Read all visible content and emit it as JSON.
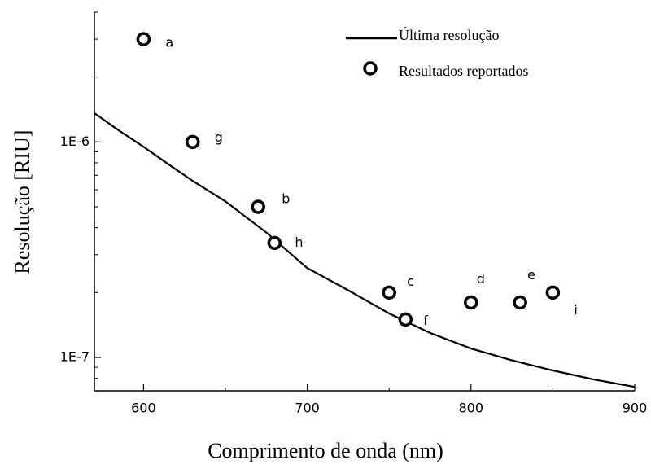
{
  "chart_data": {
    "type": "line",
    "xlabel": "Comprimento de onda (nm)",
    "ylabel": "Resolução [RIU]",
    "xlim": [
      570,
      900
    ],
    "xticks": [
      600,
      700,
      800,
      900
    ],
    "xminor": [
      650,
      750,
      850
    ],
    "ylim": [
      7e-08,
      4e-06
    ],
    "log_y": true,
    "yticks": [
      {
        "value": 1e-07,
        "label": "1E-7"
      },
      {
        "value": 1e-06,
        "label": "1E-6"
      }
    ],
    "yminor": [
      8e-08,
      9e-08,
      2e-07,
      3e-07,
      4e-07,
      5e-07,
      6e-07,
      7e-07,
      8e-07,
      9e-07,
      2e-06,
      3e-06,
      4e-06
    ],
    "legend": "top-right",
    "series": [
      {
        "name": "Última resolução",
        "type": "line",
        "color": "#000000",
        "x": [
          570,
          585,
          600,
          615,
          630,
          650,
          675,
          700,
          725,
          750,
          775,
          800,
          825,
          850,
          875,
          900
        ],
        "values": [
          1.36e-06,
          1.13e-06,
          9.5e-07,
          7.9e-07,
          6.6e-07,
          5.3e-07,
          3.8e-07,
          2.6e-07,
          2.05e-07,
          1.6e-07,
          1.3e-07,
          1.1e-07,
          9.7e-08,
          8.7e-08,
          7.9e-08,
          7.3e-08
        ]
      },
      {
        "name": "Resultados reportados",
        "type": "scatter",
        "color": "#000000",
        "x": [
          600,
          630,
          670,
          680,
          750,
          760,
          800,
          830,
          850
        ],
        "values": [
          3e-06,
          1e-06,
          5e-07,
          3.4e-07,
          2e-07,
          1.5e-07,
          1.8e-07,
          1.8e-07,
          2e-07
        ],
        "labels": [
          "a",
          "g",
          "b",
          "h",
          "c",
          "f",
          "d",
          "e",
          "i"
        ]
      }
    ]
  }
}
